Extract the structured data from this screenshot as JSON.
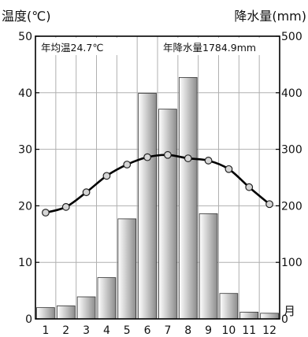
{
  "chart_data": {
    "type": "bar+line",
    "title_left": "温度(℃)",
    "title_right": "降水量(mm)",
    "annotation_temp": "年均温24.7℃",
    "annotation_precip": "年降水量1784.9mm",
    "x_axis_unit": "月",
    "categories": [
      "1",
      "2",
      "3",
      "4",
      "5",
      "6",
      "7",
      "8",
      "9",
      "10",
      "11",
      "12"
    ],
    "left_axis": {
      "range": [
        0,
        50
      ],
      "ticks": [
        "0",
        "10",
        "20",
        "30",
        "40",
        "50"
      ]
    },
    "right_axis": {
      "range": [
        0,
        500
      ],
      "ticks": [
        "0",
        "100",
        "200",
        "300",
        "400",
        "500"
      ]
    },
    "grid": true,
    "series": [
      {
        "kind": "bar",
        "axis": "right",
        "values": [
          20,
          23,
          39,
          73,
          177,
          399,
          371,
          427,
          186,
          45,
          12,
          10
        ]
      },
      {
        "kind": "line",
        "axis": "left",
        "values": [
          18.8,
          19.8,
          22.4,
          25.3,
          27.3,
          28.6,
          29.0,
          28.4,
          28.0,
          26.5,
          23.3,
          20.3
        ]
      }
    ]
  }
}
